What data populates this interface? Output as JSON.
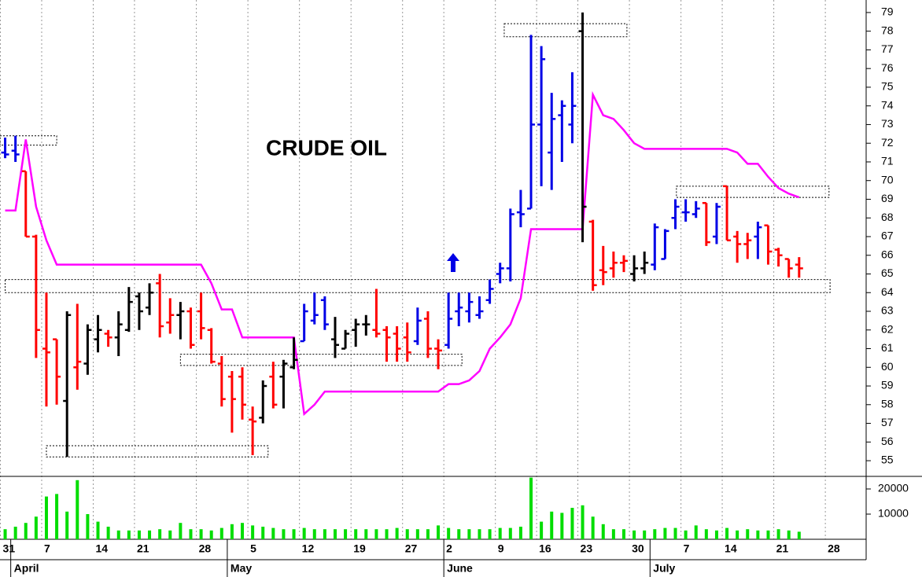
{
  "chart_data": {
    "type": "ohlc",
    "title": "CRUDE OIL",
    "x": [
      0,
      1,
      2,
      3,
      4,
      5,
      6,
      7,
      8,
      9,
      10,
      11,
      12,
      13,
      14,
      15,
      16,
      17,
      18,
      19,
      20,
      21,
      22,
      23,
      24,
      25,
      26,
      27,
      28,
      29,
      30,
      31,
      32,
      33,
      34,
      35,
      36,
      37,
      38,
      39,
      40,
      41,
      42,
      43,
      44,
      45,
      46,
      47,
      48,
      49,
      50,
      51,
      52,
      53,
      54,
      55,
      56,
      57,
      58,
      59,
      60,
      61,
      62,
      63,
      64,
      65,
      66,
      67,
      68,
      69,
      70,
      71,
      72,
      73,
      74,
      75,
      76,
      77
    ],
    "open": [
      71.5,
      71.6,
      70.5,
      67.0,
      61.0,
      61.5,
      58.2,
      60.0,
      60.2,
      61.5,
      61.8,
      61.6,
      62.0,
      63.8,
      63.2,
      64.5,
      62.4,
      62.8,
      63.0,
      63.0,
      62.0,
      60.2,
      59.5,
      59.5,
      57.2,
      57.3,
      59.5,
      59.5,
      60.0,
      61.4,
      62.5,
      63.6,
      61.5,
      61.0,
      62.0,
      62.3,
      62.0,
      62.0,
      61.8,
      61.6,
      61.4,
      62.6,
      61.0,
      61.2,
      63.0,
      63.0,
      62.8,
      63.6,
      65.0,
      65.3,
      68.3,
      68.5,
      73.0,
      71.5,
      73.5,
      73.0,
      78.0,
      67.8,
      65.2,
      65.3,
      65.6,
      65.0,
      65.3,
      65.5,
      65.8,
      68.0,
      68.3,
      68.2,
      68.8,
      67.0,
      69.7,
      67.0,
      66.6,
      67.0,
      67.6,
      66.3,
      65.8,
      65.5
    ],
    "high": [
      72.3,
      72.4,
      70.5,
      67.1,
      64.0,
      61.5,
      63.0,
      63.4,
      62.3,
      62.8,
      62.0,
      63.0,
      64.3,
      64.0,
      64.5,
      65.0,
      63.7,
      63.5,
      63.2,
      64.0,
      62.1,
      60.6,
      59.8,
      60.0,
      57.9,
      59.3,
      60.3,
      60.4,
      61.6,
      63.4,
      64.0,
      63.8,
      62.7,
      62.0,
      62.6,
      62.8,
      64.2,
      62.2,
      62.2,
      62.4,
      63.2,
      63.0,
      61.5,
      64.0,
      64.0,
      64.0,
      63.8,
      64.7,
      65.6,
      68.5,
      69.5,
      77.8,
      77.2,
      74.7,
      74.3,
      75.8,
      79.0,
      67.9,
      66.5,
      66.2,
      66.0,
      66.0,
      66.2,
      67.7,
      67.4,
      69.0,
      69.0,
      68.9,
      68.8,
      68.8,
      69.7,
      67.3,
      67.2,
      67.8,
      67.6,
      66.4,
      65.8,
      65.9
    ],
    "low": [
      71.2,
      71.0,
      67.0,
      60.5,
      57.9,
      58.0,
      55.2,
      58.8,
      59.6,
      60.8,
      61.1,
      60.6,
      61.9,
      62.0,
      62.8,
      61.6,
      61.8,
      61.5,
      61.0,
      61.5,
      60.2,
      57.9,
      56.5,
      57.2,
      55.3,
      57.0,
      57.8,
      57.8,
      59.9,
      61.4,
      62.3,
      62.0,
      60.5,
      61.0,
      61.1,
      61.7,
      61.6,
      60.3,
      60.3,
      60.3,
      61.2,
      60.5,
      59.9,
      61.0,
      62.2,
      62.4,
      62.6,
      63.4,
      64.5,
      64.6,
      67.5,
      68.5,
      69.7,
      69.5,
      71.0,
      72.0,
      66.7,
      64.1,
      64.4,
      64.8,
      65.1,
      64.6,
      65.0,
      65.2,
      65.8,
      67.4,
      67.8,
      68.0,
      66.5,
      66.6,
      66.8,
      65.6,
      65.8,
      65.8,
      65.5,
      65.4,
      64.8,
      64.8
    ],
    "close": [
      71.4,
      71.4,
      67.0,
      62.0,
      60.8,
      59.5,
      62.8,
      60.3,
      62.0,
      62.0,
      61.6,
      62.3,
      63.5,
      63.0,
      64.0,
      62.2,
      62.8,
      63.0,
      61.2,
      62.1,
      60.3,
      58.3,
      58.3,
      58.0,
      57.1,
      59.0,
      58.0,
      60.2,
      60.4,
      63.0,
      62.8,
      62.3,
      61.2,
      61.8,
      62.3,
      62.3,
      61.8,
      61.6,
      61.0,
      60.8,
      62.5,
      61.0,
      60.9,
      62.6,
      63.2,
      63.5,
      63.0,
      64.2,
      65.3,
      68.2,
      68.2,
      73.0,
      76.5,
      73.3,
      74.0,
      74.0,
      68.6,
      64.4,
      65.1,
      65.6,
      65.7,
      65.3,
      65.6,
      67.5,
      67.3,
      68.6,
      68.3,
      68.5,
      66.7,
      68.6,
      66.8,
      66.6,
      66.8,
      67.5,
      66.2,
      66.0,
      65.3,
      65.3
    ],
    "bar_colors": [
      "#0000e6",
      "#0000e6",
      "#ff0000",
      "#ff0000",
      "#ff0000",
      "#ff0000",
      "#000000",
      "#ff0000",
      "#000000",
      "#000000",
      "#ff0000",
      "#000000",
      "#000000",
      "#000000",
      "#000000",
      "#ff0000",
      "#ff0000",
      "#000000",
      "#ff0000",
      "#ff0000",
      "#ff0000",
      "#ff0000",
      "#ff0000",
      "#ff0000",
      "#ff0000",
      "#000000",
      "#ff0000",
      "#000000",
      "#000000",
      "#0000e6",
      "#0000e6",
      "#0000e6",
      "#000000",
      "#000000",
      "#000000",
      "#000000",
      "#ff0000",
      "#ff0000",
      "#ff0000",
      "#ff0000",
      "#0000e6",
      "#ff0000",
      "#ff0000",
      "#0000e6",
      "#0000e6",
      "#0000e6",
      "#0000e6",
      "#0000e6",
      "#0000e6",
      "#0000e6",
      "#0000e6",
      "#0000e6",
      "#0000e6",
      "#0000e6",
      "#0000e6",
      "#0000e6",
      "#000000",
      "#ff0000",
      "#ff0000",
      "#ff0000",
      "#ff0000",
      "#000000",
      "#000000",
      "#0000e6",
      "#0000e6",
      "#0000e6",
      "#0000e6",
      "#0000e6",
      "#ff0000",
      "#0000e6",
      "#ff0000",
      "#ff0000",
      "#ff0000",
      "#0000e6",
      "#ff0000",
      "#ff0000",
      "#ff0000",
      "#ff0000"
    ],
    "stop_line": {
      "color": "#ff00ff",
      "values": [
        68.4,
        68.4,
        72.2,
        68.6,
        66.8,
        65.5,
        65.5,
        65.5,
        65.5,
        65.5,
        65.5,
        65.5,
        65.5,
        65.5,
        65.5,
        65.5,
        65.5,
        65.5,
        65.5,
        65.5,
        64.5,
        63.1,
        63.1,
        61.6,
        61.6,
        61.6,
        61.6,
        61.6,
        61.6,
        57.5,
        58.0,
        58.7,
        58.7,
        58.7,
        58.7,
        58.7,
        58.7,
        58.7,
        58.7,
        58.7,
        58.7,
        58.7,
        58.7,
        59.1,
        59.1,
        59.3,
        59.8,
        61.0,
        61.6,
        62.3,
        63.7,
        67.4,
        67.4,
        67.4,
        67.4,
        67.4,
        67.4,
        74.6,
        73.5,
        73.3,
        72.7,
        72.0,
        71.7,
        71.7,
        71.7,
        71.7,
        71.7,
        71.7,
        71.7,
        71.7,
        71.7,
        71.5,
        70.9,
        70.9,
        70.2,
        69.6,
        69.3,
        69.1
      ]
    },
    "zones": [
      {
        "from": -0.5,
        "to": 5,
        "low": 71.9,
        "high": 72.4
      },
      {
        "from": 0,
        "to": 80,
        "low": 64.0,
        "high": 64.7
      },
      {
        "from": 4,
        "to": 25.5,
        "low": 55.2,
        "high": 55.8
      },
      {
        "from": 17,
        "to": 44.3,
        "low": 60.1,
        "high": 60.7
      },
      {
        "from": 48.4,
        "to": 60.3,
        "low": 77.7,
        "high": 78.4
      },
      {
        "from": 65.1,
        "to": 79.9,
        "low": 69.1,
        "high": 69.7
      }
    ],
    "volume": {
      "color": "#00dd00",
      "values": [
        4000,
        5000,
        6500,
        9000,
        17000,
        18000,
        11000,
        23500,
        10000,
        7000,
        5000,
        3500,
        3500,
        3500,
        3500,
        4000,
        3500,
        6500,
        4000,
        4000,
        3500,
        4500,
        6000,
        6500,
        5500,
        5000,
        4500,
        4000,
        4000,
        4500,
        4000,
        4000,
        4000,
        4000,
        4000,
        4000,
        4000,
        4000,
        4500,
        4000,
        4000,
        4000,
        5500,
        4500,
        4000,
        4000,
        4000,
        4000,
        4500,
        4500,
        5000,
        24500,
        7000,
        11000,
        10500,
        12500,
        13500,
        9000,
        6000,
        4000,
        4000,
        3500,
        3500,
        4000,
        4500,
        4500,
        3500,
        5500,
        4000,
        3500,
        4500,
        3500,
        4000,
        3500,
        3500,
        4000,
        3500,
        3000
      ],
      "ylim": [
        0,
        25000
      ],
      "yticks": [
        10000,
        20000
      ]
    },
    "xlim": [
      -0.5,
      83.5
    ],
    "ylim": [
      54.16,
      79.67
    ],
    "yticks": [
      55,
      56,
      57,
      58,
      59,
      60,
      61,
      62,
      63,
      64,
      65,
      66,
      67,
      68,
      69,
      70,
      71,
      72,
      73,
      74,
      75,
      76,
      77,
      78,
      79
    ],
    "xticks": [
      {
        "value": 0,
        "label": "31"
      },
      {
        "value": 4,
        "label": "7"
      },
      {
        "value": 9,
        "label": "14"
      },
      {
        "value": 13,
        "label": "21"
      },
      {
        "value": 19,
        "label": "28"
      },
      {
        "value": 24,
        "label": "5"
      },
      {
        "value": 29,
        "label": "12"
      },
      {
        "value": 34,
        "label": "19"
      },
      {
        "value": 39,
        "label": "27"
      },
      {
        "value": 43,
        "label": "2"
      },
      {
        "value": 48,
        "label": "9"
      },
      {
        "value": 52,
        "label": "16"
      },
      {
        "value": 56,
        "label": "23"
      },
      {
        "value": 61,
        "label": "30"
      },
      {
        "value": 66,
        "label": "7"
      },
      {
        "value": 70,
        "label": "14"
      },
      {
        "value": 75,
        "label": "21"
      },
      {
        "value": 80,
        "label": "28"
      }
    ],
    "months": [
      {
        "value": 1,
        "label": "April"
      },
      {
        "value": 22,
        "label": "May"
      },
      {
        "value": 43,
        "label": "June"
      },
      {
        "value": 63,
        "label": "July"
      }
    ],
    "grid": true
  }
}
